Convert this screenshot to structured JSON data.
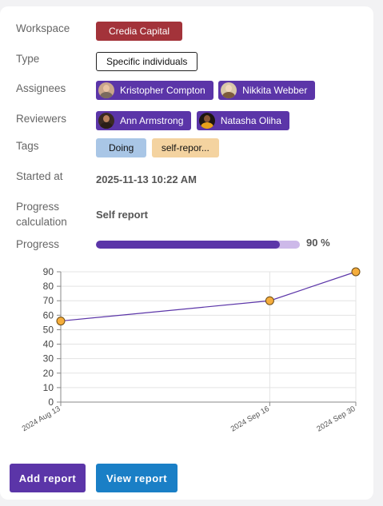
{
  "workspace": {
    "label": "Workspace",
    "value": "Credia Capital",
    "color": "#a3333a"
  },
  "type": {
    "label": "Type",
    "value": "Specific individuals"
  },
  "assignees": {
    "label": "Assignees",
    "people": [
      {
        "name": "Kristopher Compton",
        "avatar": "avatar-icon"
      },
      {
        "name": "Nikkita Webber",
        "avatar": "avatar-icon"
      }
    ]
  },
  "reviewers": {
    "label": "Reviewers",
    "people": [
      {
        "name": "Ann Armstrong",
        "avatar": "avatar-icon"
      },
      {
        "name": "Natasha Oliha",
        "avatar": "avatar-icon"
      }
    ]
  },
  "tags": {
    "label": "Tags",
    "items": [
      "Doing",
      "self-repor..."
    ]
  },
  "started_at": {
    "label": "Started at",
    "value": "2025-11-13 10:22 AM"
  },
  "progress_calculation": {
    "label_line1": "Progress",
    "label_line2": "calculation",
    "value": "Self report"
  },
  "progress": {
    "label": "Progress",
    "value": 90,
    "text": "90 %",
    "color": "#5b35a8",
    "track_color": "#cdb9e9"
  },
  "chart_data": {
    "type": "line",
    "x": [
      "2024 Aug 13",
      "2024 Sep 16",
      "2024 Sep 30"
    ],
    "x_days": [
      0,
      34,
      48
    ],
    "values": [
      56,
      70,
      90
    ],
    "ylim": [
      0,
      90
    ],
    "yticks": [
      0,
      10,
      20,
      30,
      40,
      50,
      60,
      70,
      80,
      90
    ],
    "xticks": [
      "2024 Aug 13",
      "2024 Sep 16",
      "2024 Sep 30"
    ],
    "line_color": "#5b35a8",
    "marker_color": "#f5ad3c",
    "grid": true
  },
  "buttons": {
    "add_report": "Add report",
    "view_report": "View report",
    "add_color": "#5b35a8",
    "view_color": "#1a7fc6"
  }
}
